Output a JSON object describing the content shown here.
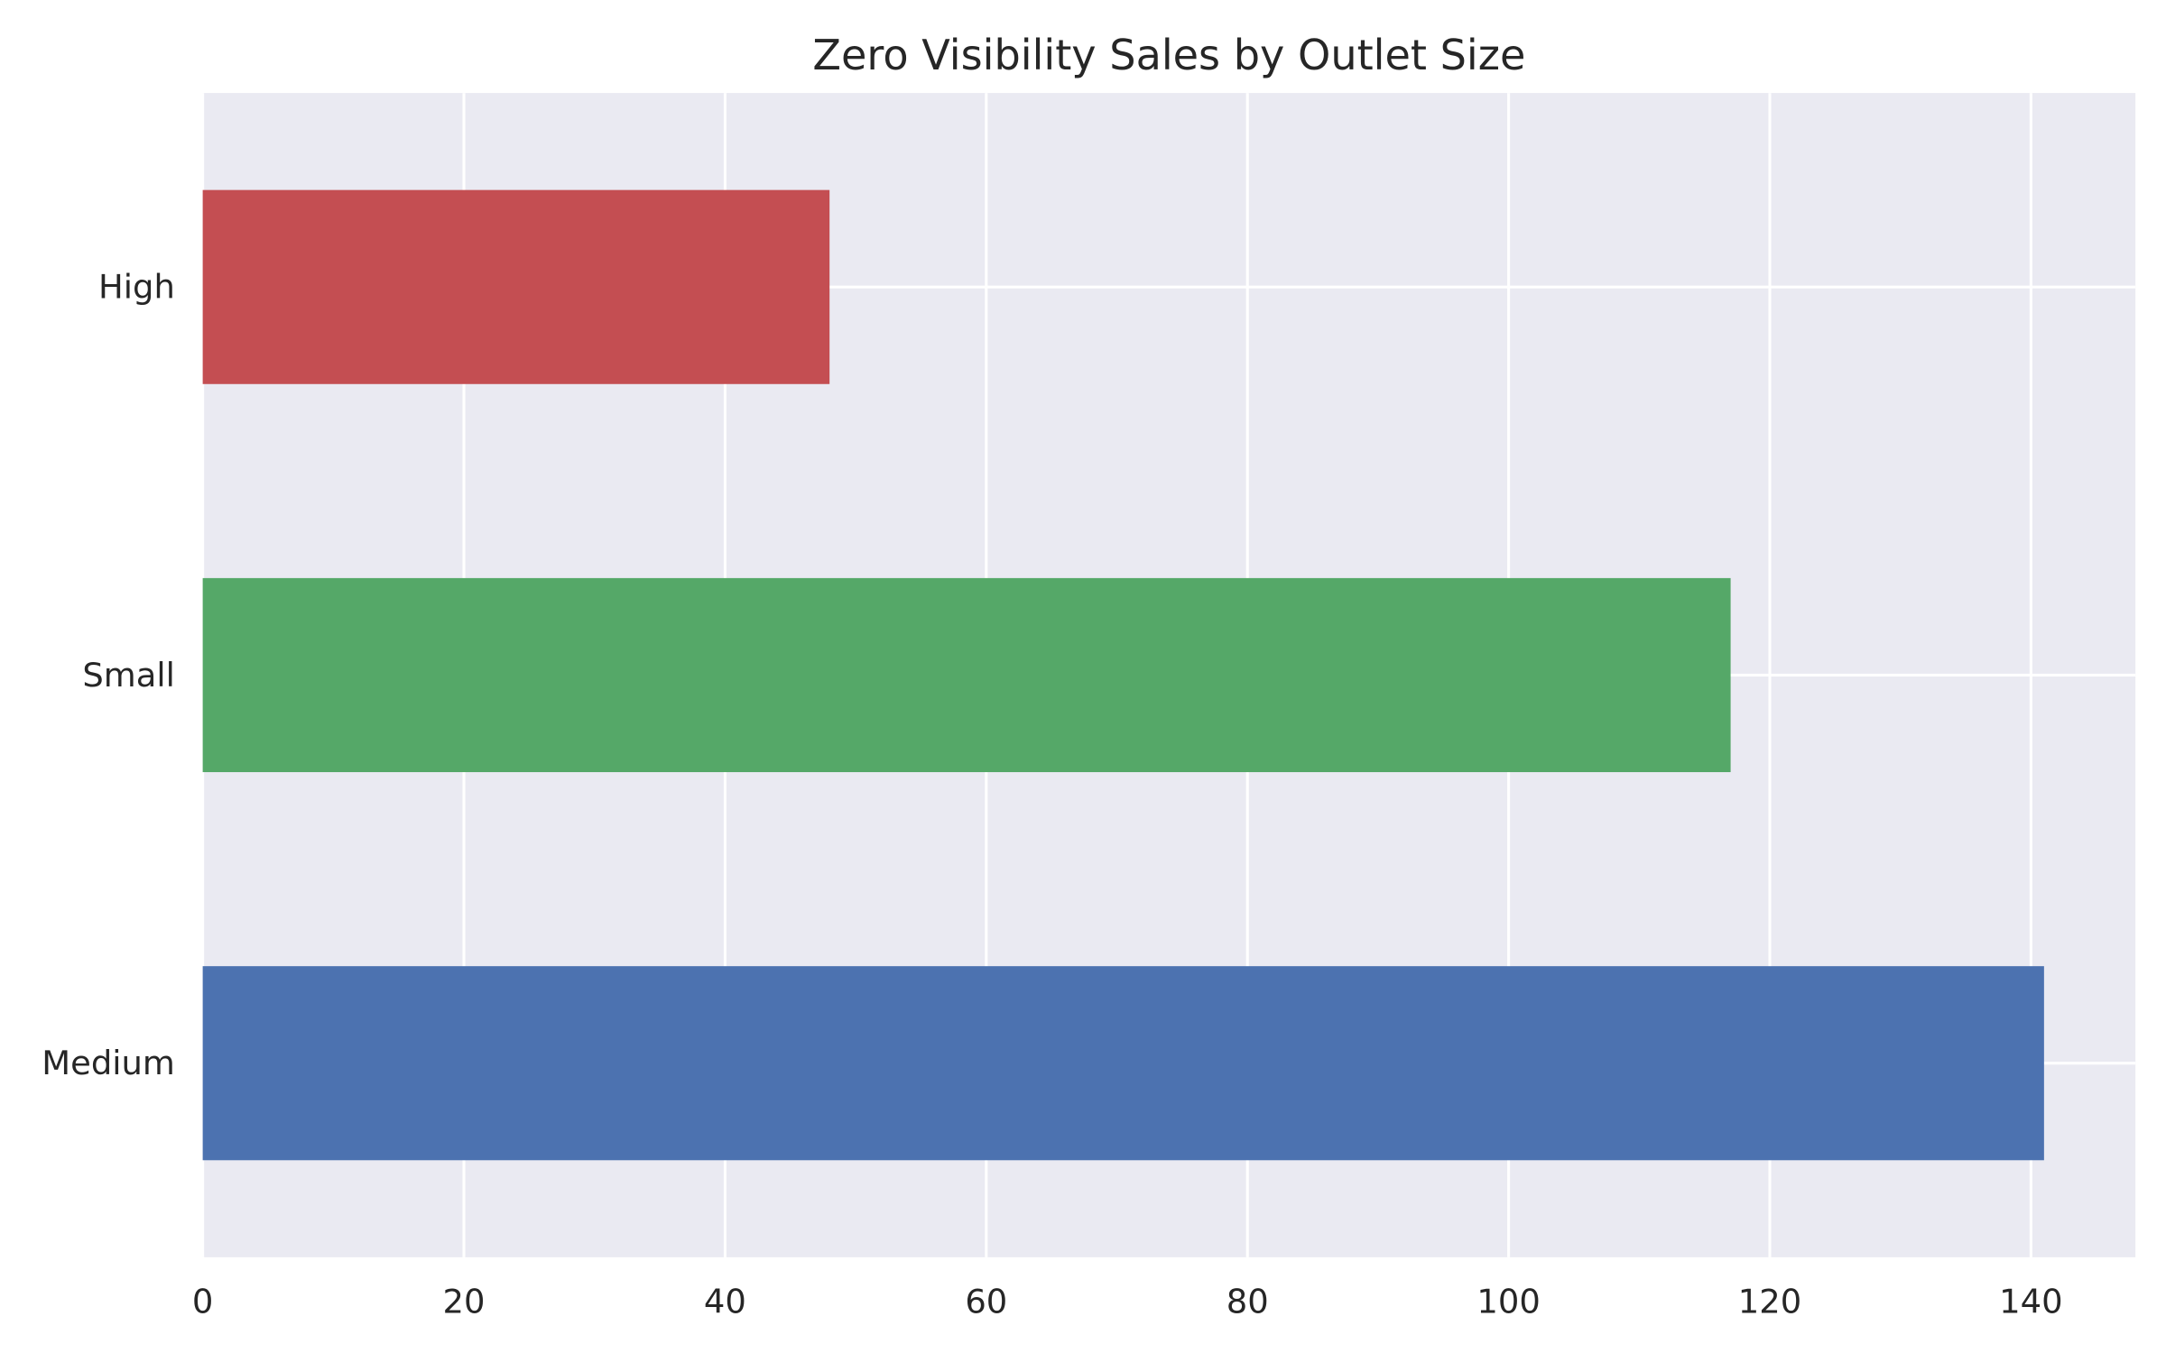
{
  "chart_data": {
    "type": "bar",
    "orientation": "horizontal",
    "title": "Zero Visibility Sales by Outlet Size",
    "xlabel": "",
    "ylabel": "",
    "categories": [
      "Medium",
      "Small",
      "High"
    ],
    "values": [
      141,
      117,
      48
    ],
    "colors": [
      "#4c72b0",
      "#55a868",
      "#c44e52"
    ],
    "xlim": [
      0,
      148
    ],
    "xticks": [
      0,
      20,
      40,
      60,
      80,
      100,
      120,
      140
    ],
    "grid": true,
    "background": "#eaeaf2",
    "legend": "none"
  }
}
